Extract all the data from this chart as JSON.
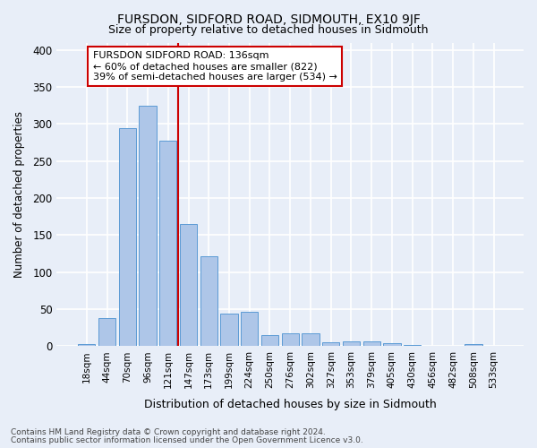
{
  "title": "FURSDON, SIDFORD ROAD, SIDMOUTH, EX10 9JF",
  "subtitle": "Size of property relative to detached houses in Sidmouth",
  "xlabel": "Distribution of detached houses by size in Sidmouth",
  "ylabel": "Number of detached properties",
  "bar_labels": [
    "18sqm",
    "44sqm",
    "70sqm",
    "96sqm",
    "121sqm",
    "147sqm",
    "173sqm",
    "199sqm",
    "224sqm",
    "250sqm",
    "276sqm",
    "302sqm",
    "327sqm",
    "353sqm",
    "379sqm",
    "405sqm",
    "430sqm",
    "456sqm",
    "482sqm",
    "508sqm",
    "533sqm"
  ],
  "bar_heights": [
    3,
    38,
    295,
    325,
    278,
    165,
    122,
    44,
    47,
    15,
    17,
    18,
    5,
    6,
    6,
    4,
    2,
    1,
    0,
    3,
    0
  ],
  "bar_color": "#aec6e8",
  "bar_edge_color": "#5b9bd5",
  "vline_x": 4.5,
  "vline_color": "#cc0000",
  "annotation_text": "FURSDON SIDFORD ROAD: 136sqm\n← 60% of detached houses are smaller (822)\n39% of semi-detached houses are larger (534) →",
  "annotation_box_color": "white",
  "annotation_edge_color": "#cc0000",
  "ylim": [
    0,
    410
  ],
  "yticks": [
    0,
    50,
    100,
    150,
    200,
    250,
    300,
    350,
    400
  ],
  "footer1": "Contains HM Land Registry data © Crown copyright and database right 2024.",
  "footer2": "Contains public sector information licensed under the Open Government Licence v3.0.",
  "bg_color": "#e8eef8",
  "grid_color": "white"
}
